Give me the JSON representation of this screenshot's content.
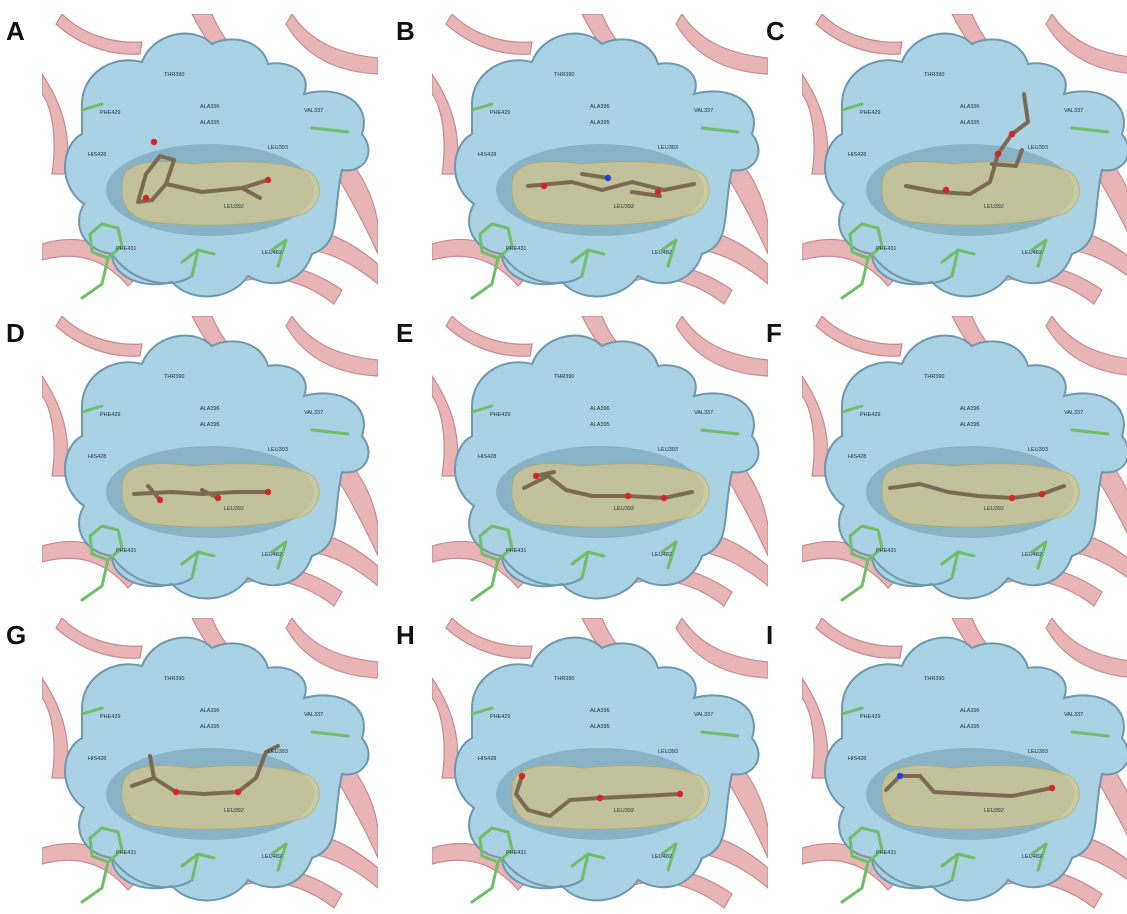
{
  "figure": {
    "panels": [
      {
        "letter": "A",
        "ligand": "a",
        "labels": [
          "THR390",
          "ALA396",
          "ALA395",
          "PHE429",
          "HIS428",
          "VAL337",
          "LEU393",
          "LEU392",
          "PHE431",
          "LEU482"
        ]
      },
      {
        "letter": "B",
        "ligand": "b",
        "labels": [
          "THR390",
          "ALA396",
          "ALA395",
          "PHE429",
          "HIS428",
          "VAL337",
          "LEU393",
          "LEU392",
          "PHE431",
          "LEU482"
        ]
      },
      {
        "letter": "C",
        "ligand": "c",
        "labels": [
          "THR390",
          "ALA396",
          "ALA395",
          "PHE429",
          "HIS428",
          "VAL337",
          "LEU393",
          "LEU392",
          "PHE431",
          "LEU482"
        ]
      },
      {
        "letter": "D",
        "ligand": "d",
        "labels": [
          "THR390",
          "ALA396",
          "ALA395",
          "PHE429",
          "HIS428",
          "VAL337",
          "LEU393",
          "LEU392",
          "PHE431",
          "LEU482"
        ]
      },
      {
        "letter": "E",
        "ligand": "e",
        "labels": [
          "THR390",
          "ALA396",
          "ALA395",
          "PHE429",
          "HIS428",
          "VAL337",
          "LEU393",
          "LEU392",
          "PHE431",
          "LEU482"
        ]
      },
      {
        "letter": "F",
        "ligand": "f",
        "labels": [
          "THR390",
          "ALA396",
          "ALA395",
          "PHE429",
          "HIS428",
          "VAL337",
          "LEU393",
          "LEU392",
          "PHE431",
          "LEU482"
        ]
      },
      {
        "letter": "G",
        "ligand": "g",
        "labels": [
          "THR390",
          "ALA396",
          "ALA395",
          "PHE429",
          "HIS428",
          "VAL337",
          "LEU393",
          "LEU392",
          "PHE431",
          "LEU482"
        ]
      },
      {
        "letter": "H",
        "ligand": "h",
        "labels": [
          "THR390",
          "ALA396",
          "ALA395",
          "PHE429",
          "HIS428",
          "VAL337",
          "LEU393",
          "LEU392",
          "PHE431",
          "LEU482"
        ]
      },
      {
        "letter": "I",
        "ligand": "i",
        "labels": [
          "THR390",
          "ALA396",
          "ALA395",
          "PHE429",
          "HIS428",
          "VAL337",
          "LEU393",
          "LEU392",
          "PHE431",
          "LEU482"
        ]
      }
    ]
  },
  "colors": {
    "background": "#ffffff",
    "protein_ribbon": "#e8b4b6",
    "ribbon_dark": "#c48c90",
    "pocket_surface": "#a9d3e4",
    "pocket_shadow": "#6d98ad",
    "ligand_mesh": "#d9c98a",
    "ligand_stick": "#7a6a52",
    "oxygen": "#d42424",
    "nitrogen": "#2a3fd4",
    "residue_sticks": "#6fbf6a"
  }
}
